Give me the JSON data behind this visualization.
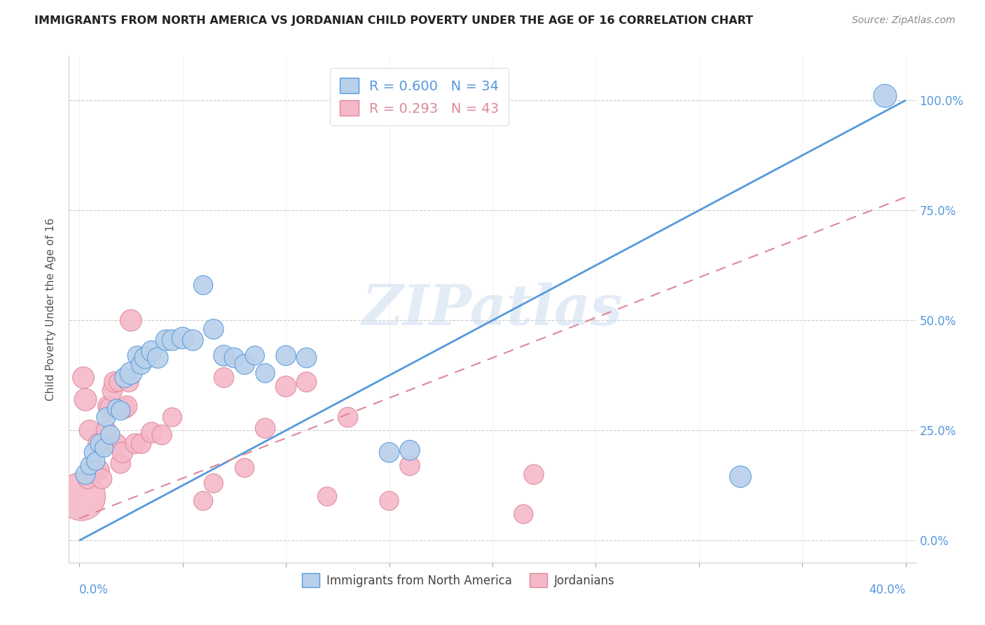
{
  "title": "IMMIGRANTS FROM NORTH AMERICA VS JORDANIAN CHILD POVERTY UNDER THE AGE OF 16 CORRELATION CHART",
  "source": "Source: ZipAtlas.com",
  "ylabel": "Child Poverty Under the Age of 16",
  "ytick_labels": [
    "0.0%",
    "25.0%",
    "50.0%",
    "75.0%",
    "100.0%"
  ],
  "ytick_values": [
    0.0,
    0.25,
    0.5,
    0.75,
    1.0
  ],
  "blue_R": 0.6,
  "blue_N": 34,
  "pink_R": 0.293,
  "pink_N": 43,
  "legend_items": [
    "Immigrants from North America",
    "Jordanians"
  ],
  "blue_color": "#b8d0ea",
  "pink_color": "#f5b8c8",
  "blue_line_color": "#5599dd",
  "pink_line_color": "#dd8899",
  "watermark_text": "ZIPatlas",
  "blue_line_x": [
    0.0,
    0.4
  ],
  "blue_line_y": [
    0.0,
    1.0
  ],
  "pink_line_x": [
    0.0,
    0.4
  ],
  "pink_line_y": [
    0.05,
    0.78
  ],
  "blue_scatter_x": [
    0.003,
    0.005,
    0.007,
    0.008,
    0.01,
    0.012,
    0.013,
    0.015,
    0.018,
    0.02,
    0.022,
    0.025,
    0.028,
    0.03,
    0.032,
    0.035,
    0.038,
    0.042,
    0.045,
    0.05,
    0.055,
    0.06,
    0.065,
    0.07,
    0.075,
    0.08,
    0.085,
    0.09,
    0.1,
    0.11,
    0.15,
    0.16,
    0.32,
    0.39
  ],
  "blue_scatter_y": [
    0.15,
    0.17,
    0.2,
    0.18,
    0.22,
    0.21,
    0.28,
    0.24,
    0.3,
    0.295,
    0.37,
    0.38,
    0.42,
    0.4,
    0.415,
    0.43,
    0.415,
    0.455,
    0.455,
    0.46,
    0.455,
    0.58,
    0.48,
    0.42,
    0.415,
    0.4,
    0.42,
    0.38,
    0.42,
    0.415,
    0.2,
    0.205,
    0.145,
    1.01
  ],
  "blue_scatter_sizes": [
    60,
    50,
    55,
    50,
    55,
    50,
    55,
    55,
    50,
    55,
    60,
    75,
    55,
    60,
    70,
    65,
    65,
    65,
    65,
    70,
    65,
    55,
    60,
    65,
    60,
    60,
    55,
    55,
    60,
    60,
    60,
    60,
    70,
    80
  ],
  "pink_scatter_x": [
    0.001,
    0.002,
    0.003,
    0.004,
    0.005,
    0.006,
    0.007,
    0.008,
    0.009,
    0.01,
    0.011,
    0.012,
    0.013,
    0.014,
    0.015,
    0.016,
    0.017,
    0.018,
    0.019,
    0.02,
    0.021,
    0.022,
    0.023,
    0.024,
    0.025,
    0.027,
    0.03,
    0.035,
    0.04,
    0.045,
    0.06,
    0.065,
    0.07,
    0.08,
    0.09,
    0.1,
    0.11,
    0.12,
    0.13,
    0.15,
    0.16,
    0.215,
    0.22
  ],
  "pink_scatter_y": [
    0.1,
    0.37,
    0.32,
    0.14,
    0.25,
    0.16,
    0.16,
    0.16,
    0.22,
    0.16,
    0.14,
    0.22,
    0.25,
    0.305,
    0.3,
    0.34,
    0.36,
    0.22,
    0.36,
    0.175,
    0.2,
    0.3,
    0.305,
    0.36,
    0.5,
    0.22,
    0.22,
    0.245,
    0.24,
    0.28,
    0.09,
    0.13,
    0.37,
    0.165,
    0.255,
    0.35,
    0.36,
    0.1,
    0.28,
    0.09,
    0.17,
    0.06,
    0.15
  ],
  "pink_scatter_sizes": [
    350,
    70,
    75,
    60,
    65,
    60,
    70,
    65,
    60,
    55,
    60,
    65,
    60,
    65,
    70,
    60,
    65,
    60,
    55,
    60,
    65,
    60,
    65,
    60,
    70,
    60,
    60,
    65,
    60,
    55,
    55,
    55,
    60,
    55,
    60,
    65,
    60,
    55,
    60,
    55,
    60,
    55,
    60
  ],
  "xlim": [
    -0.005,
    0.405
  ],
  "ylim": [
    -0.05,
    1.1
  ],
  "grid_color": "#cccccc",
  "title_color": "#222222",
  "right_axis_color": "#5599dd",
  "tick_color": "#5599dd"
}
